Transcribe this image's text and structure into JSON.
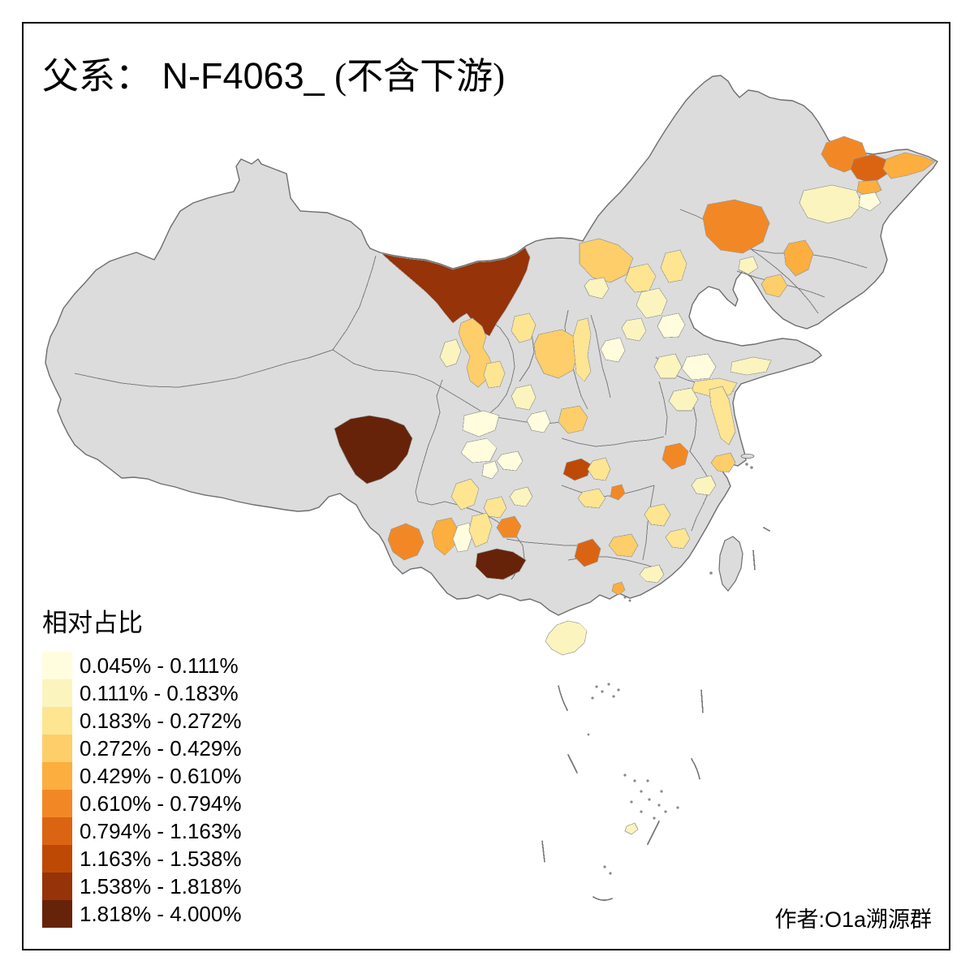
{
  "title": {
    "prefix": "父系：",
    "haplogroup": " N-F4063_ ",
    "suffix": "(不含下游)"
  },
  "legend": {
    "title": "相对占比",
    "classes": [
      {
        "label": "0.045% - 0.111%",
        "color": "#FFFDDE"
      },
      {
        "label": "0.111% - 0.183%",
        "color": "#FBF4BE"
      },
      {
        "label": "0.183% - 0.272%",
        "color": "#FDE592"
      },
      {
        "label": "0.272% - 0.429%",
        "color": "#FDCE69"
      },
      {
        "label": "0.429% - 0.610%",
        "color": "#FCAE3F"
      },
      {
        "label": "0.610% - 0.794%",
        "color": "#F28825"
      },
      {
        "label": "0.794% - 1.163%",
        "color": "#DB6413"
      },
      {
        "label": "1.163% - 1.538%",
        "color": "#BE4905"
      },
      {
        "label": "1.538% - 1.818%",
        "color": "#963309"
      },
      {
        "label": "1.818% - 4.000%",
        "color": "#672309"
      }
    ]
  },
  "attribution": "作者:O1a溯源群",
  "map": {
    "na_fill": "#DCDCDC",
    "national_stroke": "#6E6E6E",
    "province_stroke": "#7D7D7D",
    "region_stroke": "#9A9A9A",
    "sea_mark_stroke": "#777777",
    "regions": [
      {
        "id": "r01",
        "class": 6
      },
      {
        "id": "r02",
        "class": 7
      },
      {
        "id": "r03",
        "class": 5
      },
      {
        "id": "r04",
        "class": 5
      },
      {
        "id": "r05",
        "class": 2
      },
      {
        "id": "r06",
        "class": 1
      },
      {
        "id": "r07",
        "class": 6
      },
      {
        "id": "r08",
        "class": 5
      },
      {
        "id": "r09",
        "class": 4
      },
      {
        "id": "r10",
        "class": 2
      },
      {
        "id": "r11",
        "class": 9
      },
      {
        "id": "r12",
        "class": 4
      },
      {
        "id": "r13",
        "class": 2
      },
      {
        "id": "r14",
        "class": 3
      },
      {
        "id": "r15",
        "class": 3
      },
      {
        "id": "r16",
        "class": 4
      },
      {
        "id": "r17",
        "class": 4
      },
      {
        "id": "r18",
        "class": 3
      },
      {
        "id": "r19",
        "class": 3
      },
      {
        "id": "r20",
        "class": 2
      },
      {
        "id": "r21",
        "class": 2
      },
      {
        "id": "r22",
        "class": 1
      },
      {
        "id": "r23",
        "class": 2
      },
      {
        "id": "r24",
        "class": 3
      },
      {
        "id": "r25",
        "class": 1
      },
      {
        "id": "r26",
        "class": 2
      },
      {
        "id": "r27",
        "class": 1
      },
      {
        "id": "r28",
        "class": 2
      },
      {
        "id": "r29",
        "class": 3
      },
      {
        "id": "r30",
        "class": 4
      },
      {
        "id": "r31",
        "class": 2
      },
      {
        "id": "r32",
        "class": 1
      },
      {
        "id": "r33",
        "class": 1
      },
      {
        "id": "r34",
        "class": 1
      },
      {
        "id": "r35",
        "class": 3
      },
      {
        "id": "r36",
        "class": 8
      },
      {
        "id": "r37",
        "class": 3
      },
      {
        "id": "r38",
        "class": 3
      },
      {
        "id": "r39",
        "class": 6
      },
      {
        "id": "r40",
        "class": 3
      },
      {
        "id": "r41",
        "class": 2
      },
      {
        "id": "r42",
        "class": 4
      },
      {
        "id": "r43",
        "class": 2
      },
      {
        "id": "r44",
        "class": 6
      },
      {
        "id": "r45",
        "class": 3
      },
      {
        "id": "r46",
        "class": 3
      },
      {
        "id": "r47",
        "class": 10
      },
      {
        "id": "r48",
        "class": 6
      },
      {
        "id": "r49",
        "class": 5
      },
      {
        "id": "r50",
        "class": 1
      },
      {
        "id": "r51",
        "class": 3
      },
      {
        "id": "r52",
        "class": 3
      },
      {
        "id": "r53",
        "class": 2
      },
      {
        "id": "r54",
        "class": 6
      },
      {
        "id": "r55",
        "class": 10
      },
      {
        "id": "r56",
        "class": 7
      },
      {
        "id": "r57",
        "class": 4
      },
      {
        "id": "r58",
        "class": 2
      },
      {
        "id": "r59",
        "class": 5
      },
      {
        "id": "r60",
        "class": 2
      },
      {
        "id": "r61",
        "class": 2
      },
      {
        "id": "r62",
        "class": 1
      },
      {
        "id": "r63",
        "class": 1
      }
    ]
  }
}
